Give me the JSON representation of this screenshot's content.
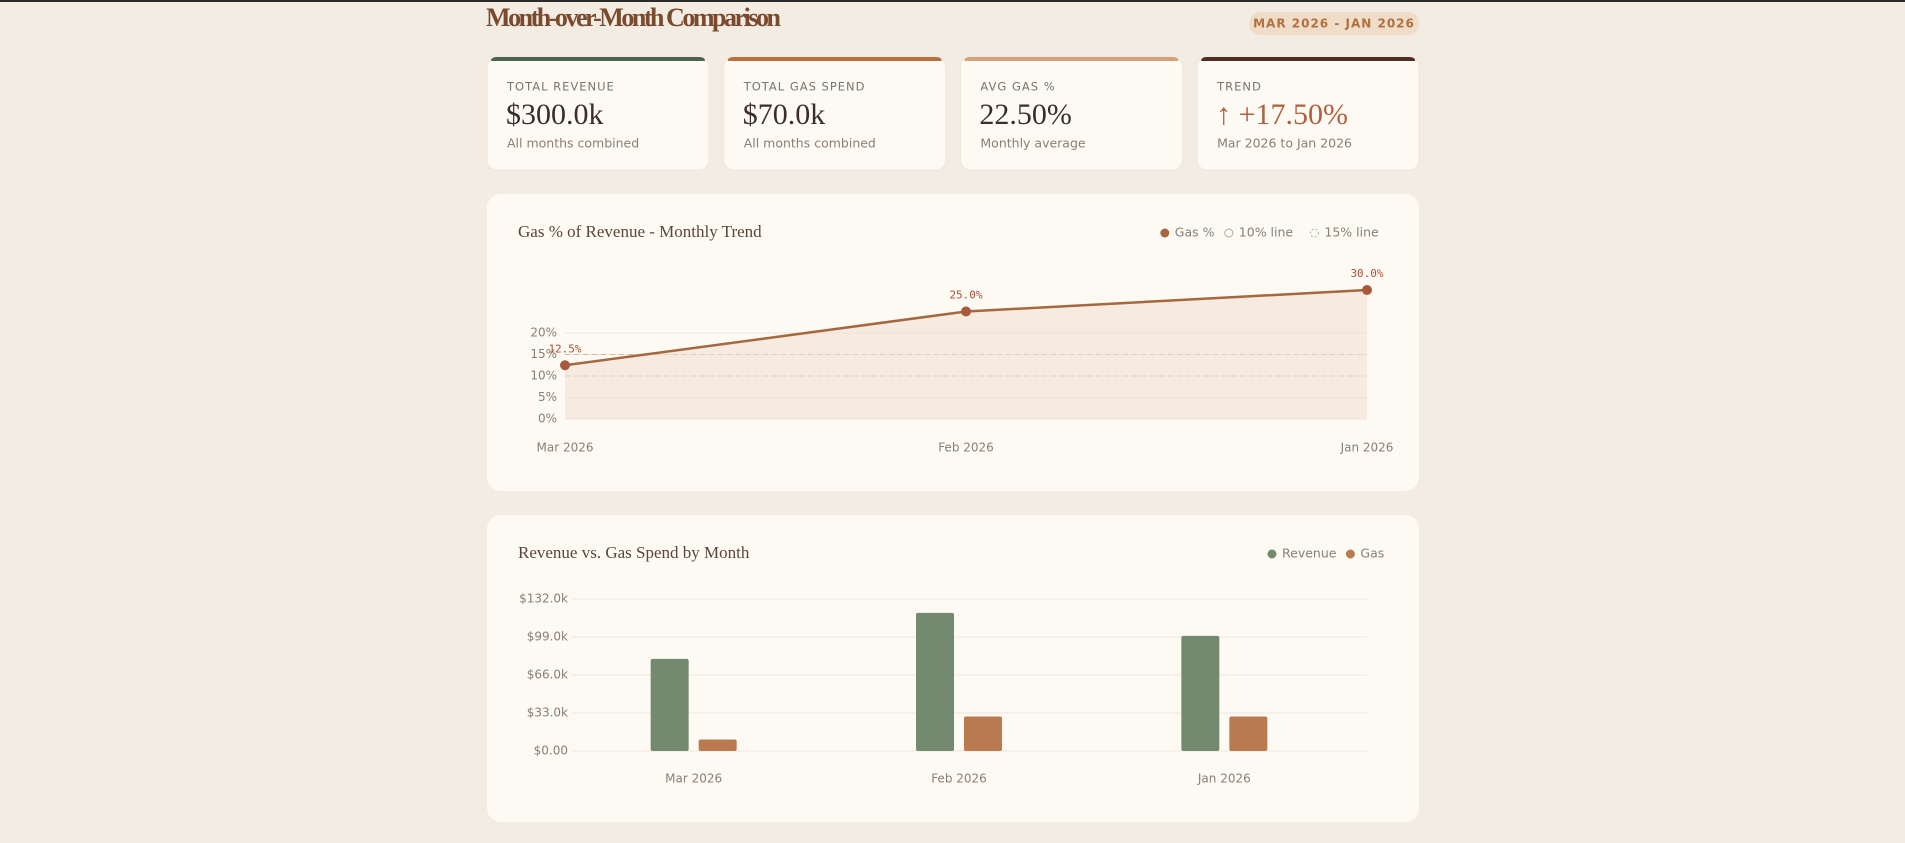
{
  "header": {
    "title": "Month-over-Month Comparison",
    "range": "MAR 2026 - JAN 2026"
  },
  "cards": [
    {
      "label": "TOTAL REVENUE",
      "value": "$300.0k",
      "note": "All months combined",
      "color": "#4d6250"
    },
    {
      "label": "TOTAL GAS SPEND",
      "value": "$70.0k",
      "note": "All months combined",
      "color": "#b8703e"
    },
    {
      "label": "AVG GAS %",
      "value": "22.50%",
      "note": "Monthly average",
      "color": "#d3a27a"
    },
    {
      "label": "TREND",
      "value": "↑ +17.50%",
      "note": "Mar 2026 to Jan 2026",
      "color": "#4e2e24"
    }
  ],
  "chart_data": [
    {
      "type": "line",
      "title": "Gas % of Revenue - Monthly Trend",
      "categories": [
        "Mar 2026",
        "Feb 2026",
        "Jan 2026"
      ],
      "series": [
        {
          "name": "Gas %",
          "color": "#a5683e",
          "values": [
            12.5,
            25.0,
            30.0
          ],
          "value_labels": [
            "12.5%",
            "25.0%",
            "30.0%"
          ]
        }
      ],
      "reference_lines": [
        {
          "name": "10% line",
          "value": 10
        },
        {
          "name": "15% line",
          "value": 15
        }
      ],
      "ylim": [
        0,
        30
      ],
      "yticks": [
        {
          "value": 0,
          "label": "0%"
        },
        {
          "value": 5,
          "label": "5%"
        },
        {
          "value": 10,
          "label": "10%"
        },
        {
          "value": 15,
          "label": "15%"
        },
        {
          "value": 20,
          "label": "20%"
        }
      ],
      "grid": true
    },
    {
      "type": "bar",
      "title": "Revenue vs. Gas Spend by Month",
      "categories": [
        "Mar 2026",
        "Feb 2026",
        "Jan 2026"
      ],
      "series": [
        {
          "name": "Revenue",
          "color": "#748a6e",
          "values": [
            80000,
            120000,
            100000
          ]
        },
        {
          "name": "Gas",
          "color": "#b87a4e",
          "values": [
            10000,
            30000,
            30000
          ]
        }
      ],
      "ylim": [
        0,
        132000
      ],
      "yticks": [
        {
          "value": 0,
          "label": "$0.00"
        },
        {
          "value": 33000,
          "label": "$33.0k"
        },
        {
          "value": 66000,
          "label": "$66.0k"
        },
        {
          "value": 99000,
          "label": "$99.0k"
        },
        {
          "value": 132000,
          "label": "$132.0k"
        }
      ],
      "grid": true
    }
  ]
}
